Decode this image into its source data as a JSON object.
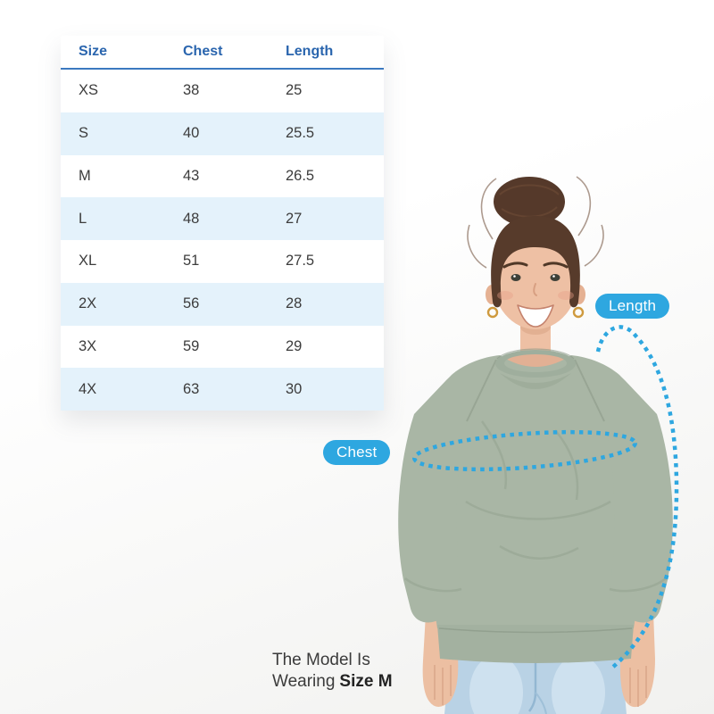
{
  "table": {
    "headers": [
      "Size",
      "Chest",
      "Length"
    ],
    "rows": [
      [
        "XS",
        "38",
        "25"
      ],
      [
        "S",
        "40",
        "25.5"
      ],
      [
        "M",
        "43",
        "26.5"
      ],
      [
        "L",
        "48",
        "27"
      ],
      [
        "XL",
        "51",
        "27.5"
      ],
      [
        "2X",
        "56",
        "28"
      ],
      [
        "3X",
        "59",
        "29"
      ],
      [
        "4X",
        "63",
        "30"
      ]
    ]
  },
  "measures": {
    "chest": "Chest",
    "length": "Length"
  },
  "caption": {
    "line1": "The Model Is",
    "line2": "Wearing",
    "size": "Size M"
  },
  "colors": {
    "accent_blue": "#2ea7e0",
    "header_blue": "#2a65ae",
    "header_underline": "#3b79c0",
    "row_alt_bg": "#e4f2fb",
    "cell_text": "#3c3c3c",
    "sweatshirt": "#a9b6a5",
    "jeans": "#b9d2e5"
  }
}
